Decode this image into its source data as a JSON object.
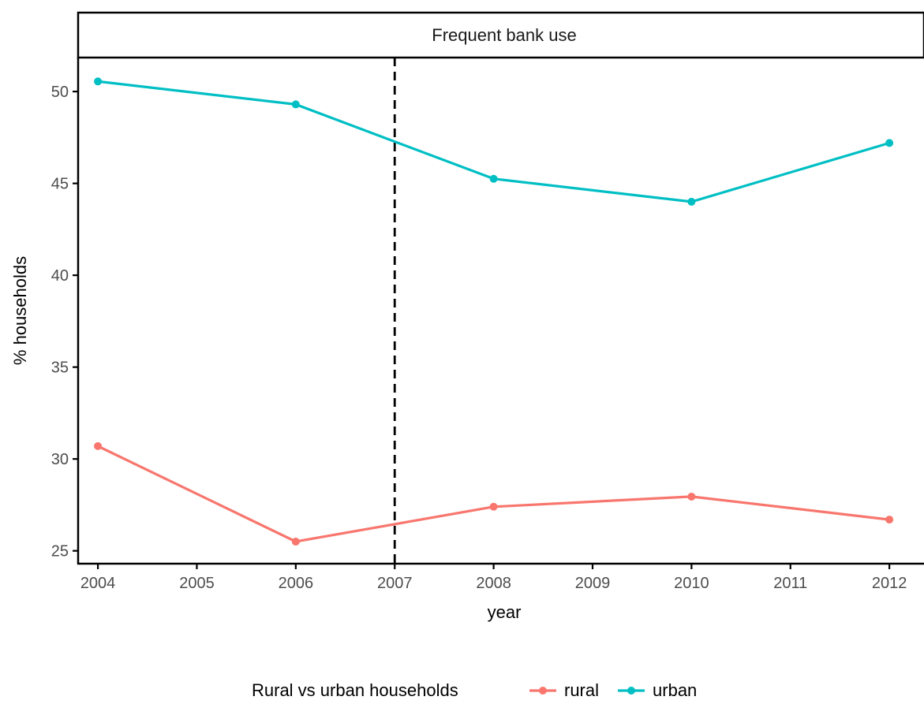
{
  "chart_data": {
    "type": "line",
    "facet_title": "Frequent bank use",
    "xlabel": "year",
    "ylabel": "% households",
    "x": [
      2004,
      2006,
      2008,
      2010,
      2012
    ],
    "x_ticks": [
      2004,
      2005,
      2006,
      2007,
      2008,
      2009,
      2010,
      2011,
      2012
    ],
    "y_ticks": [
      25,
      30,
      35,
      40,
      45,
      50
    ],
    "xlim": [
      2003.8,
      2012.35
    ],
    "ylim": [
      24.3,
      51.85
    ],
    "vline": {
      "x": 2007,
      "style": "dashed",
      "color": "#000000"
    },
    "series": [
      {
        "name": "rural",
        "color": "#F8766D",
        "values": [
          30.7,
          25.5,
          27.4,
          27.95,
          26.7
        ]
      },
      {
        "name": "urban",
        "color": "#00BFC4",
        "values": [
          50.55,
          49.3,
          45.25,
          44.0,
          47.2
        ]
      }
    ],
    "legend": {
      "title": "Rural vs urban households",
      "position": "bottom"
    },
    "grid": false
  }
}
